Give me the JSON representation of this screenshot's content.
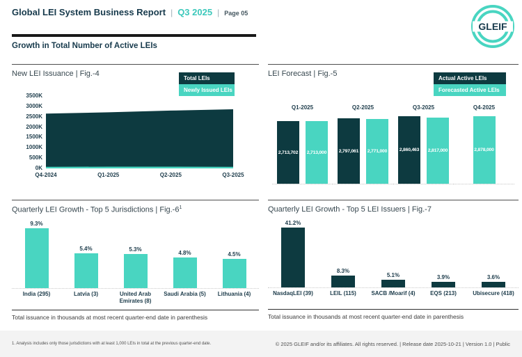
{
  "header": {
    "title": "Global LEI System Business Report",
    "separator": "|",
    "quarter": "Q3 2025",
    "page": "Page 05",
    "section_title": "Growth in Total Number of Active LEIs",
    "logo_text": "GLEIF"
  },
  "colors": {
    "dark_petrol": "#0d3a40",
    "teal": "#49d5c1",
    "header_navy": "#173a4c",
    "accent_teal_text": "#3cc8bb"
  },
  "chart_data": [
    {
      "id": "fig4",
      "type": "area",
      "title": "New LEI Issuance | Fig.-4",
      "legend": [
        "Total LEIs",
        "Newly Issued LEIs"
      ],
      "x": [
        "Q4-2024",
        "Q1-2025",
        "Q2-2025",
        "Q3-2025"
      ],
      "series": [
        {
          "name": "Total LEIs",
          "color_key": "dark_petrol",
          "values": [
            2650000,
            2713702,
            2797061,
            2860463
          ]
        },
        {
          "name": "Newly Issued LEIs",
          "color_key": "teal",
          "values": [
            76000,
            84000,
            84000,
            78000
          ]
        }
      ],
      "ylim": [
        0,
        3500000
      ],
      "yticks": [
        {
          "label": "0K",
          "v": 0
        },
        {
          "label": "500K",
          "v": 500000
        },
        {
          "label": "1000K",
          "v": 1000000
        },
        {
          "label": "1500K",
          "v": 1500000
        },
        {
          "label": "2000K",
          "v": 2000000
        },
        {
          "label": "2500K",
          "v": 2500000
        },
        {
          "label": "3000K",
          "v": 3000000
        },
        {
          "label": "3500K",
          "v": 3500000
        }
      ],
      "grid": false,
      "legend_position": "top-right"
    },
    {
      "id": "fig5",
      "type": "bar",
      "title": "LEI Forecast | Fig.-5",
      "legend": [
        "Actual Active LEIs",
        "Forecasted Active LEIs"
      ],
      "categories": [
        "Q1-2025",
        "Q2-2025",
        "Q3-2025",
        "Q4-2025"
      ],
      "series": [
        {
          "name": "Actual Active LEIs",
          "color_key": "dark_petrol",
          "values": [
            2713702,
            2797061,
            2860463,
            null
          ],
          "labels": [
            "2,713,702",
            "2,797,061",
            "2,860,463",
            null
          ]
        },
        {
          "name": "Forecasted Active LEIs",
          "color_key": "teal",
          "values": [
            2713000,
            2771000,
            2817000,
            2878000
          ],
          "labels": [
            "2,713,000",
            "2,771,000",
            "2,817,000",
            "2,878,000"
          ]
        }
      ],
      "grid": false,
      "legend_position": "top-right"
    },
    {
      "id": "fig6",
      "type": "bar",
      "title": "Quarterly LEI Growth - Top 5 Jurisdictions | Fig.-6",
      "title_sup": "1",
      "color_key": "teal",
      "categories": [
        "India (295)",
        "Latvia (3)",
        "United Arab Emirates (8)",
        "Saudi Arabia (5)",
        "Lithuania (4)"
      ],
      "values": [
        9.3,
        5.4,
        5.3,
        4.8,
        4.5
      ],
      "labels": [
        "9.3%",
        "5.4%",
        "5.3%",
        "4.8%",
        "4.5%"
      ],
      "footnote": "Total issuance in thousands at most recent quarter-end date in parenthesis",
      "grid": false
    },
    {
      "id": "fig7",
      "type": "bar",
      "title": "Quarterly LEI Growth - Top 5 LEI Issuers | Fig.-7",
      "color_key": "dark_petrol",
      "categories": [
        "NasdaqLEI (39)",
        "LEIL (115)",
        "SACB /Moarif (4)",
        "EQS (213)",
        "Ubisecure (418)"
      ],
      "values": [
        41.2,
        8.3,
        5.1,
        3.9,
        3.6
      ],
      "labels": [
        "41.2%",
        "8.3%",
        "5.1%",
        "3.9%",
        "3.6%"
      ],
      "footnote": "Total issuance in thousands at most recent quarter-end date in parenthesis",
      "grid": false
    }
  ],
  "footer": {
    "footnote": "1. Analysis includes only those jurisdictions with at least 1,000 LEIs in total at the previous quarter-end date.",
    "copyright": "© 2025 GLEIF and/or its affiliates. All rights reserved. | Release date 2025-10-21 | Version 1.0 | Public"
  }
}
